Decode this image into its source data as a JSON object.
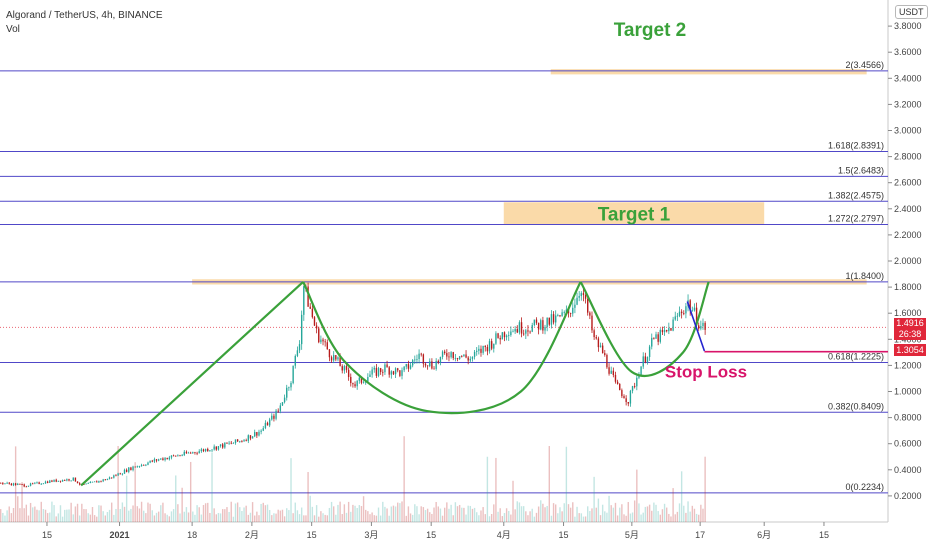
{
  "header": {
    "symbol_title": "Algorand / TetherUS, 4h, BINANCE",
    "volume_label": "Vol",
    "currency_badge": "USDT"
  },
  "price_tags": {
    "current_price": "1.4916",
    "countdown": "26:38",
    "stop_price": "1.3054"
  },
  "colors": {
    "fib_line": "#5048c8",
    "target_zone": "#f9d39a",
    "pattern": "#3aa13a",
    "stop_line": "#d8146a",
    "trend_line": "#2525d0",
    "candle_up": "#26a69a",
    "candle_down": "#b71c1c",
    "price_tag": "#e0273a"
  },
  "chart_data": {
    "type": "candlestick",
    "title": "Algorand / TetherUS, 4h, BINANCE",
    "y_axis": {
      "scale": "linear",
      "range": [
        0.0,
        4.0
      ],
      "ticks": [
        0.2,
        0.4,
        0.6,
        0.8,
        1.0,
        1.2,
        1.4,
        1.6,
        1.8,
        2.0,
        2.2,
        2.4,
        2.6,
        2.8,
        3.0,
        3.2,
        3.4,
        3.6,
        3.8
      ],
      "tick_labels": [
        "0.2000",
        "0.4000",
        "0.6000",
        "0.8000",
        "1.0000",
        "1.2000",
        "1.4000",
        "1.6000",
        "1.8000",
        "2.0000",
        "2.2000",
        "2.4000",
        "2.6000",
        "2.8000",
        "3.0000",
        "3.2000",
        "3.4000",
        "3.6000",
        "3.8000"
      ]
    },
    "x_axis": {
      "tick_labels": [
        "15",
        "2021",
        "18",
        "2月",
        "15",
        "3月",
        "15",
        "4月",
        "15",
        "5月",
        "17",
        "6月",
        "15"
      ],
      "ticks_day_index": [
        -17,
        0,
        17,
        31,
        45,
        59,
        73,
        90,
        104,
        120,
        136,
        151,
        165
      ],
      "range_day_index": [
        -28,
        180
      ]
    },
    "fibonacci_levels": [
      {
        "label": "0(0.2234)",
        "price": 0.2234
      },
      {
        "label": "0.382(0.8409)",
        "price": 0.8409
      },
      {
        "label": "0.618(1.2225)",
        "price": 1.2225
      },
      {
        "label": "1(1.8400)",
        "price": 1.84
      },
      {
        "label": "1.272(2.2797)",
        "price": 2.2797
      },
      {
        "label": "1.382(2.4575)",
        "price": 2.4575
      },
      {
        "label": "1.5(2.6483)",
        "price": 2.6483
      },
      {
        "label": "1.618(2.8391)",
        "price": 2.8391
      },
      {
        "label": "2(3.4566)",
        "price": 3.4566
      }
    ],
    "annotations": {
      "target_1": {
        "label": "Target 1",
        "x_range": [
          90,
          151
        ],
        "y_range": [
          2.28,
          2.45
        ]
      },
      "target_2": {
        "label": "Target 2",
        "x_range": [
          101,
          175
        ],
        "y_range": [
          3.43,
          3.47
        ]
      },
      "resistance_zone": {
        "x_range": [
          17,
          175
        ],
        "y_range": [
          1.82,
          1.86
        ]
      },
      "stop_loss": {
        "label": "Stop Loss",
        "price": 1.3054,
        "x_range": [
          137,
          178
        ]
      },
      "current_price_line": 1.4916
    },
    "pattern_lines": [
      {
        "name": "rally",
        "points": [
          [
            -9,
            0.28
          ],
          [
            43,
            1.84
          ]
        ]
      },
      {
        "name": "cup_1",
        "points": [
          [
            43,
            1.84
          ],
          [
            53,
            1.22
          ],
          [
            72,
            0.85
          ],
          [
            94,
            1.0
          ],
          [
            108,
            1.84
          ]
        ]
      },
      {
        "name": "cup_2",
        "points": [
          [
            108,
            1.84
          ],
          [
            120,
            1.15
          ],
          [
            132,
            1.3
          ],
          [
            138,
            1.84
          ]
        ]
      }
    ],
    "trend_line": {
      "points": [
        [
          133,
          1.69
        ],
        [
          137,
          1.31
        ]
      ]
    },
    "price_path": [
      [
        -28,
        0.3
      ],
      [
        -22,
        0.28
      ],
      [
        -17,
        0.31
      ],
      [
        -11,
        0.33
      ],
      [
        -9,
        0.28
      ],
      [
        -3,
        0.33
      ],
      [
        3,
        0.42
      ],
      [
        9,
        0.48
      ],
      [
        15,
        0.52
      ],
      [
        22,
        0.57
      ],
      [
        28,
        0.62
      ],
      [
        33,
        0.7
      ],
      [
        37,
        0.85
      ],
      [
        40,
        1.1
      ],
      [
        42,
        1.4
      ],
      [
        43,
        1.81
      ],
      [
        46,
        1.45
      ],
      [
        49,
        1.3
      ],
      [
        52,
        1.18
      ],
      [
        55,
        1.05
      ],
      [
        58,
        1.12
      ],
      [
        62,
        1.18
      ],
      [
        66,
        1.14
      ],
      [
        70,
        1.28
      ],
      [
        73,
        1.2
      ],
      [
        77,
        1.3
      ],
      [
        82,
        1.25
      ],
      [
        86,
        1.35
      ],
      [
        91,
        1.48
      ],
      [
        97,
        1.5
      ],
      [
        102,
        1.55
      ],
      [
        105,
        1.6
      ],
      [
        108,
        1.8
      ],
      [
        111,
        1.4
      ],
      [
        113,
        1.3
      ],
      [
        116,
        1.05
      ],
      [
        119,
        0.93
      ],
      [
        122,
        1.2
      ],
      [
        125,
        1.4
      ],
      [
        128,
        1.45
      ],
      [
        131,
        1.6
      ],
      [
        133,
        1.68
      ],
      [
        136,
        1.5
      ],
      [
        137,
        1.49
      ]
    ]
  }
}
